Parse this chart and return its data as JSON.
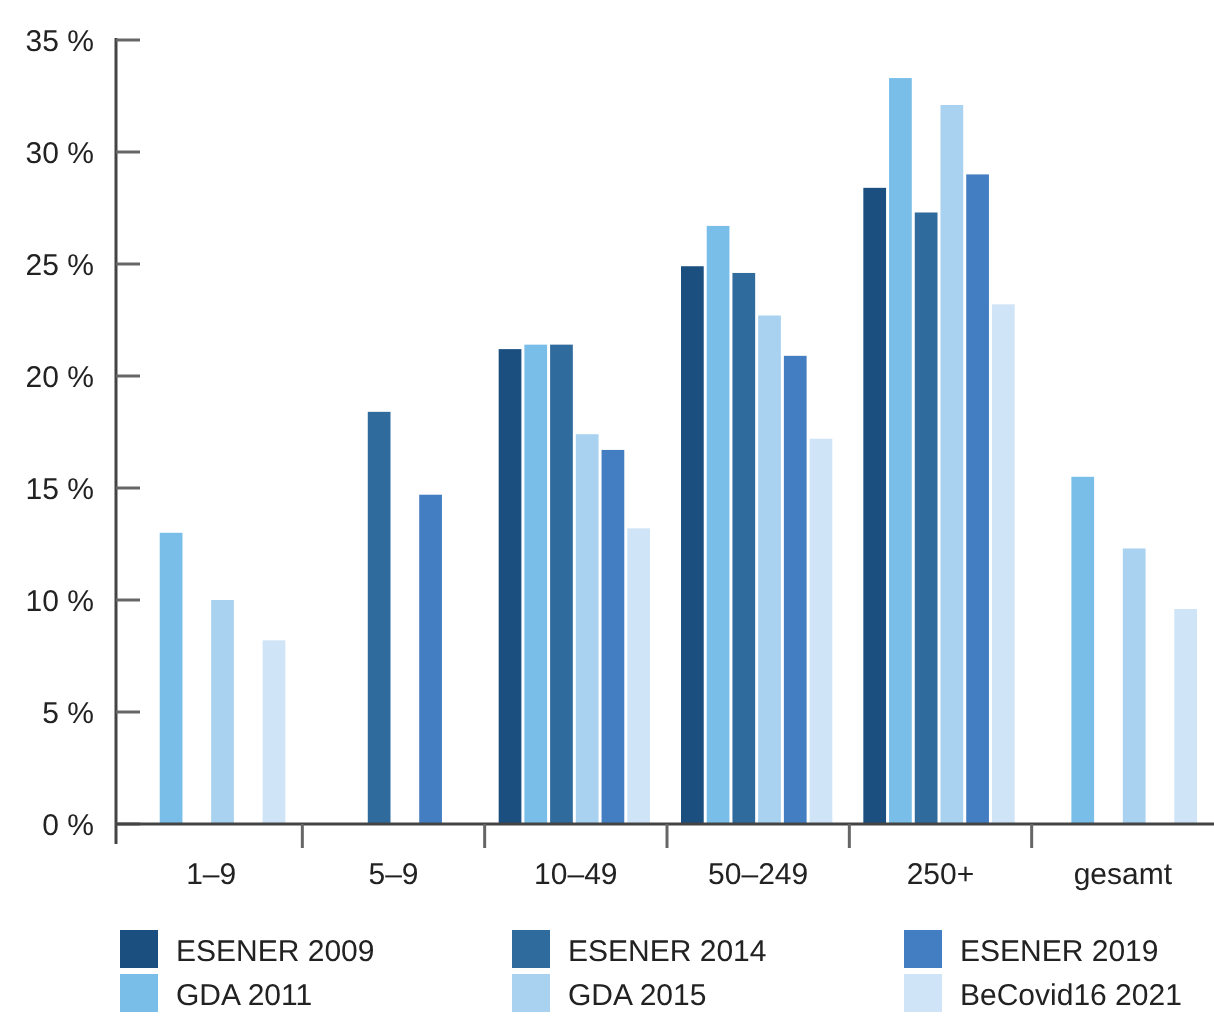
{
  "chart_data": {
    "type": "bar",
    "categories": [
      "1–9",
      "5–9",
      "10–49",
      "50–249",
      "250+",
      "gesamt"
    ],
    "series": [
      {
        "name": "ESENER 2009",
        "color": "#1a4f80",
        "values": [
          null,
          null,
          21.2,
          24.9,
          28.4,
          null
        ]
      },
      {
        "name": "GDA 2011",
        "color": "#78bee9",
        "values": [
          13.0,
          null,
          21.4,
          26.7,
          33.3,
          15.5
        ]
      },
      {
        "name": "ESENER 2014",
        "color": "#306b9e",
        "values": [
          null,
          18.4,
          21.4,
          24.6,
          27.3,
          null
        ]
      },
      {
        "name": "GDA 2015",
        "color": "#a8d2f0",
        "values": [
          10.0,
          null,
          17.4,
          22.7,
          32.1,
          12.3
        ]
      },
      {
        "name": "ESENER 2019",
        "color": "#437ec2",
        "values": [
          null,
          14.7,
          16.7,
          20.9,
          29.0,
          null
        ]
      },
      {
        "name": "BeCovid16 2021",
        "color": "#cfe5f7",
        "values": [
          8.2,
          null,
          13.2,
          17.2,
          23.2,
          9.6
        ]
      }
    ],
    "ylim": [
      0,
      35
    ],
    "yticks": [
      {
        "value": 0,
        "label": "0 %"
      },
      {
        "value": 5,
        "label": "5 %"
      },
      {
        "value": 10,
        "label": "10 %"
      },
      {
        "value": 15,
        "label": "15 %"
      },
      {
        "value": 20,
        "label": "20 %"
      },
      {
        "value": 25,
        "label": "25 %"
      },
      {
        "value": 30,
        "label": "30 %"
      },
      {
        "value": 35,
        "label": "35 %"
      }
    ],
    "grid": false,
    "legend": "bottom"
  }
}
